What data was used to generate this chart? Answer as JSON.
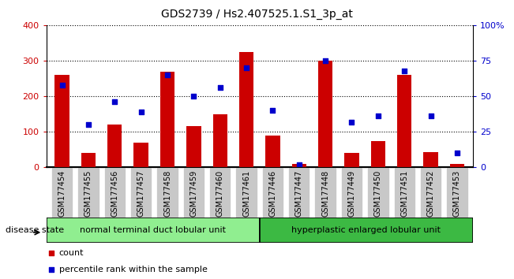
{
  "title": "GDS2739 / Hs2.407525.1.S1_3p_at",
  "samples": [
    "GSM177454",
    "GSM177455",
    "GSM177456",
    "GSM177457",
    "GSM177458",
    "GSM177459",
    "GSM177460",
    "GSM177461",
    "GSM177446",
    "GSM177447",
    "GSM177448",
    "GSM177449",
    "GSM177450",
    "GSM177451",
    "GSM177452",
    "GSM177453"
  ],
  "counts": [
    260,
    40,
    120,
    70,
    270,
    115,
    150,
    325,
    90,
    10,
    300,
    40,
    75,
    260,
    42,
    10
  ],
  "percentiles": [
    58,
    30,
    46,
    39,
    65,
    50,
    56,
    70,
    40,
    2,
    75,
    32,
    36,
    68,
    36,
    10
  ],
  "group1_label": "normal terminal duct lobular unit",
  "group2_label": "hyperplastic enlarged lobular unit",
  "group1_count": 8,
  "group2_count": 8,
  "bar_color": "#cc0000",
  "dot_color": "#0000cc",
  "group1_bg": "#90ee90",
  "group2_bg": "#3cb943",
  "tick_bg": "#c8c8c8",
  "ylim_left": [
    0,
    400
  ],
  "ylim_right": [
    0,
    100
  ],
  "yticks_left": [
    0,
    100,
    200,
    300,
    400
  ],
  "yticks_right": [
    0,
    25,
    50,
    75,
    100
  ],
  "ytick_labels_right": [
    "0",
    "25",
    "50",
    "75",
    "100%"
  ],
  "ylabel_right_color": "#0000cc",
  "ylabel_left_color": "#cc0000",
  "legend_count_label": "count",
  "legend_pct_label": "percentile rank within the sample"
}
